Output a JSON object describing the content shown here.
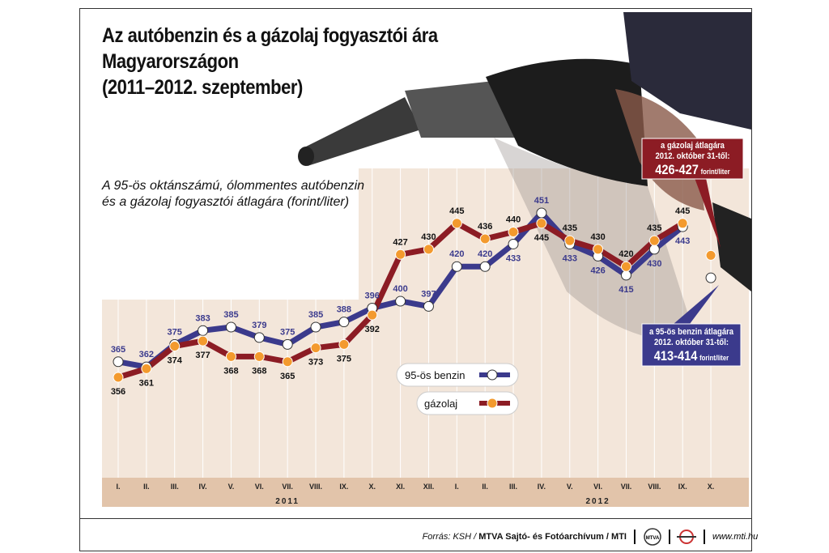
{
  "title_lines": [
    "Az autóbenzin és a gázolaj fogyasztói ára",
    "Magyarországon",
    "(2011–2012. szeptember)"
  ],
  "subtitle_lines": [
    "A 95-ös oktánszámú, ólommentes autóbenzin",
    "és a gázolaj fogyasztói átlagára (forint/liter)"
  ],
  "callouts": {
    "diesel": {
      "line1": "a gázolaj átlagára",
      "line2": "2012. október 31-től:",
      "value": "426-427",
      "unit": "forint/liter"
    },
    "petrol": {
      "line1": "a 95-ös benzin átlagára",
      "line2": "2012. október 31-től:",
      "value": "413-414",
      "unit": "forint/liter"
    }
  },
  "footer": {
    "source_prefix": "Forrás: KSH /",
    "source_bold": "MTVA Sajtó- és Fotóarchívum / MTI",
    "url": "www.mti.hu",
    "logo_text": "MTVA"
  },
  "colors": {
    "petrol": "#3b3a8c",
    "diesel": "#8c1c24",
    "diesel_marker": "#f39a2e",
    "petrol_marker": "#ffffff",
    "plot_bg": "#f3e6da",
    "axis_band": "#e2c4aa"
  },
  "chart_data": {
    "type": "line",
    "categories": [
      "I.",
      "II.",
      "III.",
      "IV.",
      "V.",
      "VI.",
      "VII.",
      "VIII.",
      "IX.",
      "X.",
      "XI.",
      "XII.",
      "I.",
      "II.",
      "III.",
      "IV.",
      "V.",
      "VI.",
      "VII.",
      "VIII.",
      "IX.",
      "X."
    ],
    "year_labels": [
      "2011",
      "2012"
    ],
    "unit": "forint/liter",
    "series": [
      {
        "name": "95-ös benzin",
        "values": [
          365,
          362,
          375,
          383,
          385,
          379,
          375,
          385,
          388,
          396,
          400,
          397,
          420,
          420,
          433,
          451,
          433,
          426,
          415,
          430,
          443,
          null
        ],
        "labels": [
          "365",
          "362",
          "375",
          "383",
          "385",
          "379",
          "375",
          "385",
          "388",
          "396",
          "400",
          "397",
          "420",
          "420",
          "433",
          "451",
          "433",
          "426",
          "415",
          "430",
          "443",
          ""
        ],
        "projected_oct_2012": 413.5
      },
      {
        "name": "gázolaj",
        "values": [
          356,
          361,
          374,
          377,
          368,
          368,
          365,
          373,
          375,
          392,
          427,
          430,
          445,
          436,
          440,
          445,
          435,
          430,
          420,
          435,
          445,
          null
        ],
        "labels": [
          "356",
          "361",
          "374",
          "377",
          "368",
          "368",
          "365",
          "373",
          "375",
          "392",
          "427",
          "430",
          "445",
          "436",
          "440",
          "445",
          "435",
          "430",
          "420",
          "435",
          "445",
          ""
        ],
        "projected_oct_2012": 426.5
      }
    ]
  }
}
